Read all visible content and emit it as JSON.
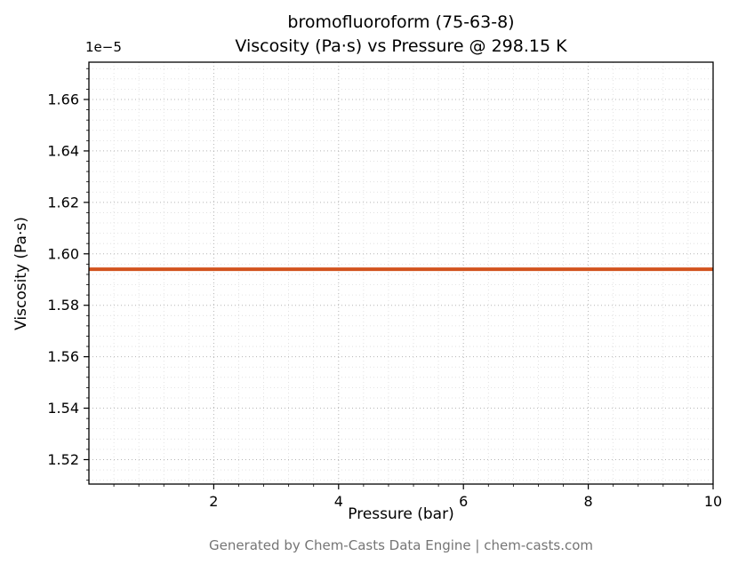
{
  "chart_data": {
    "type": "line",
    "title": "bromofluoroform (75-63-8)",
    "subtitle": "Viscosity (Pa·s) vs Pressure @ 298.15 K",
    "xlabel": "Pressure (bar)",
    "ylabel": "Viscosity (Pa·s)",
    "y_offset_label": "1e−5",
    "x_ticks": [
      2,
      4,
      6,
      8,
      10
    ],
    "y_ticks": [
      1.52,
      1.54,
      1.56,
      1.58,
      1.6,
      1.62,
      1.64,
      1.66
    ],
    "xlim": [
      0,
      10
    ],
    "ylim": [
      1.5105,
      1.6745
    ],
    "y_scale_note": "y axis values are multiples of 1e-5 Pa·s",
    "x_minor_step": 0.4,
    "y_minor_step": 0.004,
    "grid": true,
    "series": [
      {
        "name": "viscosity",
        "color": "#d2531e",
        "linewidth": 4,
        "x": [
          0,
          10
        ],
        "y": [
          1.594,
          1.594
        ],
        "value_pa_s": 1.594e-05
      }
    ],
    "footer": "Generated by Chem-Casts Data Engine | chem-casts.com",
    "colors": {
      "spine": "#000000",
      "major_grid": "#b5b5b5",
      "minor_grid": "#dcdcdc",
      "text": "#000000",
      "footer_text": "#757575"
    }
  }
}
